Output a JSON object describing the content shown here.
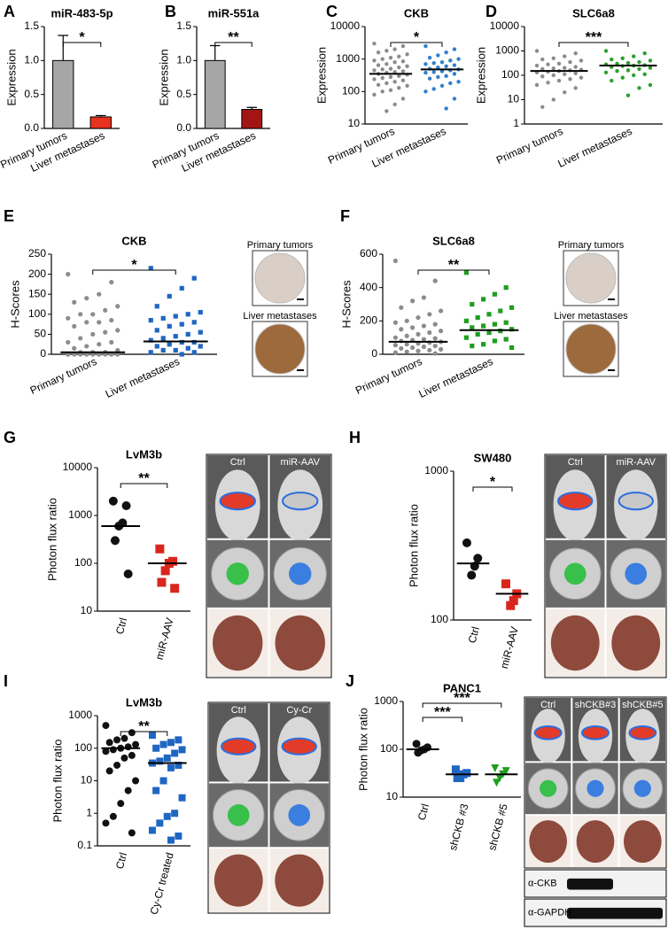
{
  "chart_data": [
    {
      "type": "bar",
      "panel": "A",
      "title": "miR-483-5p",
      "ylabel": "Expression",
      "categories": [
        "Primary tumors",
        "Liver metastases"
      ],
      "values": [
        1.0,
        0.17
      ],
      "errors": [
        0.37,
        0.02
      ],
      "colors": [
        "#a6a6a6",
        "#e8311f"
      ],
      "ylim": [
        0,
        1.5
      ],
      "yticks": [
        {
          "value": 0,
          "label": "0.0"
        },
        0.5,
        {
          "value": 1,
          "label": "1.0"
        },
        1.5
      ],
      "significance": [
        "*"
      ]
    },
    {
      "type": "bar",
      "panel": "B",
      "title": "miR-551a",
      "ylabel": "Expression",
      "categories": [
        "Primary tumors",
        "Liver metastases"
      ],
      "values": [
        1.0,
        0.28
      ],
      "errors": [
        0.22,
        0.03
      ],
      "colors": [
        "#a6a6a6",
        "#a31515"
      ],
      "ylim": [
        0,
        1.5
      ],
      "yticks": [
        {
          "value": 0,
          "label": "0.0"
        },
        0.5,
        {
          "value": 1,
          "label": "1.0"
        },
        1.5
      ],
      "significance": [
        "**"
      ]
    },
    {
      "type": "strip",
      "panel": "C",
      "title": "CKB",
      "ylabel": "Expression",
      "log_scale": true,
      "categories": [
        "Primary tumors",
        "Liver metastases"
      ],
      "colors": [
        "#8c8c8c",
        "#2f7fd0"
      ],
      "markers": [
        "circle",
        "circle"
      ],
      "points": [
        [
          3000,
          2500,
          2000,
          1800,
          1600,
          1400,
          1200,
          1100,
          1000,
          900,
          850,
          800,
          700,
          650,
          600,
          550,
          500,
          480,
          450,
          420,
          400,
          380,
          350,
          330,
          300,
          280,
          260,
          240,
          220,
          200,
          180,
          160,
          150,
          130,
          110,
          100,
          80,
          60,
          40,
          25
        ],
        [
          2500,
          2000,
          1600,
          1300,
          1100,
          1000,
          900,
          800,
          750,
          700,
          650,
          600,
          550,
          500,
          480,
          450,
          420,
          400,
          380,
          350,
          300,
          280,
          250,
          200,
          180,
          150,
          120,
          100,
          60,
          30
        ]
      ],
      "centers": [
        350,
        480
      ],
      "ylim": [
        10,
        10000
      ],
      "yticks": [
        10,
        100,
        1000,
        10000
      ],
      "significance": [
        "*"
      ]
    },
    {
      "type": "strip",
      "panel": "D",
      "title": "SLC6a8",
      "ylabel": "Expression",
      "log_scale": true,
      "categories": [
        "Primary tumors",
        "Liver metastases"
      ],
      "colors": [
        "#8c8c8c",
        "#2e9e2e"
      ],
      "markers": [
        "circle",
        "circle"
      ],
      "points": [
        [
          1000,
          800,
          600,
          500,
          450,
          400,
          350,
          300,
          280,
          250,
          220,
          200,
          190,
          180,
          170,
          160,
          150,
          140,
          130,
          120,
          110,
          100,
          90,
          80,
          70,
          60,
          50,
          40,
          30,
          20,
          10,
          5
        ],
        [
          1000,
          800,
          600,
          500,
          450,
          400,
          350,
          320,
          300,
          280,
          260,
          250,
          240,
          220,
          200,
          180,
          160,
          150,
          130,
          110,
          100,
          80,
          60,
          40,
          30,
          15
        ]
      ],
      "centers": [
        150,
        250
      ],
      "ylim": [
        1,
        10000
      ],
      "yticks": [
        1,
        10,
        100,
        1000,
        10000
      ],
      "significance": [
        "***"
      ]
    },
    {
      "type": "strip",
      "panel": "E",
      "title": "CKB",
      "ylabel": "H-Scores",
      "categories": [
        "Primary tumors",
        "Liver metastases"
      ],
      "colors": [
        "#8c8c8c",
        "#1f66c2"
      ],
      "markers": [
        "circle",
        "square"
      ],
      "points": [
        [
          200,
          180,
          150,
          140,
          130,
          120,
          110,
          100,
          100,
          90,
          85,
          80,
          80,
          70,
          60,
          55,
          50,
          40,
          30,
          30,
          25,
          20,
          15,
          10,
          5,
          5,
          5,
          0,
          0,
          0,
          0,
          0,
          0,
          0,
          0,
          0,
          0,
          0,
          0,
          0
        ],
        [
          215,
          190,
          165,
          145,
          120,
          105,
          100,
          95,
          90,
          85,
          80,
          75,
          70,
          60,
          55,
          50,
          45,
          40,
          35,
          30,
          30,
          25,
          20,
          20,
          15,
          10,
          10,
          5,
          5,
          0
        ]
      ],
      "centers": [
        5,
        32
      ],
      "ylim": [
        0,
        250
      ],
      "yticks": [
        0,
        50,
        100,
        150,
        200,
        250
      ],
      "significance": [
        "*"
      ],
      "image_labels": [
        "Primary tumors",
        "Liver metastases"
      ]
    },
    {
      "type": "strip",
      "panel": "F",
      "title": "SLC6a8",
      "ylabel": "H-Scores",
      "categories": [
        "Primary tumors",
        "Liver metastases"
      ],
      "colors": [
        "#8c8c8c",
        "#1e9e1e"
      ],
      "markers": [
        "circle",
        "square"
      ],
      "points": [
        [
          560,
          440,
          340,
          320,
          280,
          260,
          240,
          220,
          200,
          190,
          180,
          170,
          160,
          150,
          140,
          130,
          120,
          110,
          100,
          95,
          90,
          85,
          80,
          75,
          70,
          65,
          60,
          55,
          50,
          45,
          40,
          35,
          30,
          25,
          20,
          15,
          10,
          5
        ],
        [
          490,
          400,
          360,
          330,
          300,
          280,
          260,
          240,
          220,
          200,
          190,
          180,
          170,
          160,
          150,
          140,
          130,
          120,
          100,
          90,
          80,
          60,
          50,
          40
        ]
      ],
      "centers": [
        75,
        145
      ],
      "ylim": [
        0,
        600
      ],
      "yticks": [
        0,
        200,
        400,
        600
      ],
      "significance": [
        "**"
      ],
      "image_labels": [
        "Primary tumors",
        "Liver metastases"
      ]
    },
    {
      "type": "strip",
      "panel": "G",
      "title": "LvM3b",
      "ylabel": "Photon flux ratio",
      "log_scale": true,
      "categories": [
        "Ctrl",
        "miR-AAV"
      ],
      "colors": [
        "#111111",
        "#d9261c"
      ],
      "markers": [
        "circle",
        "square"
      ],
      "points": [
        [
          2000,
          1600,
          700,
          600,
          300,
          60
        ],
        [
          200,
          110,
          100,
          70,
          40,
          30
        ]
      ],
      "centers": [
        600,
        100
      ],
      "ylim": [
        10,
        10000
      ],
      "yticks": [
        10,
        100,
        1000,
        10000
      ],
      "significance": [
        "**"
      ],
      "image_labels": [
        "Ctrl",
        "miR-AAV"
      ]
    },
    {
      "type": "strip",
      "panel": "H",
      "title": "SW480",
      "ylabel": "Photon flux ratio",
      "log_scale": true,
      "categories": [
        "Ctrl",
        "miR-AAV"
      ],
      "colors": [
        "#111111",
        "#d9261c"
      ],
      "markers": [
        "circle",
        "square"
      ],
      "points": [
        [
          330,
          260,
          230,
          200
        ],
        [
          175,
          150,
          135,
          125
        ]
      ],
      "centers": [
        240,
        150
      ],
      "ylim": [
        100,
        1000
      ],
      "yticks": [
        100,
        1000
      ],
      "significance": [
        "*"
      ],
      "image_labels": [
        "Ctrl",
        "miR-AAV"
      ]
    },
    {
      "type": "strip",
      "panel": "I",
      "title": "LvM3b",
      "ylabel": "Photon flux ratio",
      "log_scale": true,
      "categories": [
        "Ctrl",
        "Cy-Cr treated"
      ],
      "colors": [
        "#111111",
        "#1f66c2"
      ],
      "markers": [
        "circle",
        "square"
      ],
      "points": [
        [
          500,
          300,
          200,
          180,
          150,
          130,
          110,
          100,
          90,
          80,
          60,
          50,
          30,
          20,
          10,
          5,
          2,
          0.8,
          0.5,
          0.25
        ],
        [
          250,
          180,
          150,
          130,
          100,
          90,
          70,
          50,
          40,
          35,
          30,
          25,
          10,
          5,
          3,
          1,
          0.8,
          0.5,
          0.3,
          0.2,
          0.15
        ]
      ],
      "centers": [
        100,
        35
      ],
      "ylim": [
        0.1,
        1000
      ],
      "yticks": [
        0.1,
        1,
        10,
        100,
        1000
      ],
      "significance": [
        "**"
      ],
      "image_labels": [
        "Ctrl",
        "Cy-Cr"
      ]
    },
    {
      "type": "strip",
      "panel": "J",
      "title": "PANC1",
      "ylabel": "Photon flux ratio",
      "log_scale": true,
      "categories": [
        "Ctrl",
        "shCKB #3",
        "shCKB #5"
      ],
      "colors": [
        "#111111",
        "#1f66c2",
        "#1e9e1e"
      ],
      "markers": [
        "circle",
        "square",
        "triangle"
      ],
      "points": [
        [
          130,
          110,
          100,
          95,
          85
        ],
        [
          38,
          32,
          30,
          25,
          25
        ],
        [
          40,
          35,
          30,
          25,
          20
        ]
      ],
      "centers": [
        100,
        30,
        30
      ],
      "ylim": [
        10,
        1000
      ],
      "yticks": [
        10,
        100,
        1000
      ],
      "significance": [
        "***",
        "***"
      ],
      "image_labels": [
        "Ctrl",
        "shCKB#3",
        "shCKB#5"
      ],
      "blot_labels": [
        "α-CKB",
        "α-GAPDH"
      ]
    }
  ]
}
